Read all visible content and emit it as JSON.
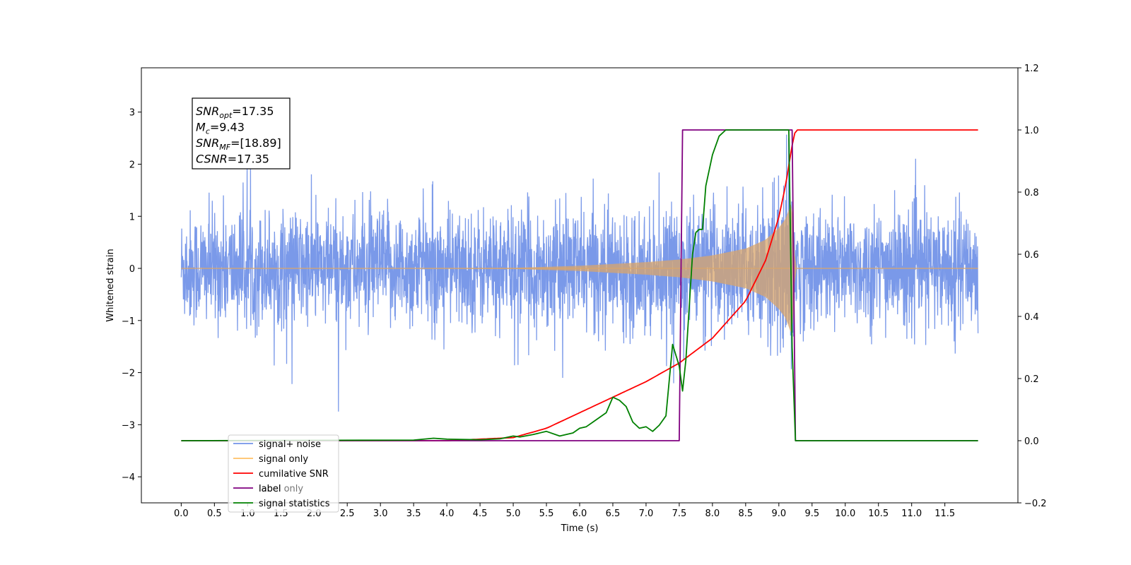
{
  "chart_data": {
    "type": "line",
    "xlabel": "Time (s)",
    "ylabel": "Whitened strain",
    "xlim": [
      -0.6,
      12.6
    ],
    "ylim": [
      -4.5,
      3.85
    ],
    "y2lim": [
      -0.2,
      1.2
    ],
    "x_ticks": [
      "0.0",
      "0.5",
      "1.0",
      "1.5",
      "2.0",
      "2.5",
      "3.0",
      "3.5",
      "4.0",
      "4.5",
      "5.0",
      "5.5",
      "6.0",
      "6.5",
      "7.0",
      "7.5",
      "8.0",
      "8.5",
      "9.0",
      "9.5",
      "10.0",
      "10.5",
      "11.0",
      "11.5"
    ],
    "y_ticks": [
      "3",
      "2",
      "1",
      "0",
      "−1",
      "−2",
      "−3",
      "−4"
    ],
    "y2_ticks": [
      "1.2",
      "1.0",
      "0.8",
      "0.6",
      "0.4",
      "0.2",
      "0.0",
      "−0.2"
    ],
    "annotation": {
      "lines": [
        {
          "base": "SNR",
          "sub": "opt",
          "rest": "=17.35"
        },
        {
          "base": "M",
          "sub": "c",
          "rest": "=9.43"
        },
        {
          "base": "SNR",
          "sub": "MF",
          "rest": "=[18.89]"
        },
        {
          "base": "CSNR",
          "sub": "",
          "rest": "=17.35"
        }
      ]
    },
    "series": [
      {
        "name": "signal+ noise",
        "color": "#7393e8",
        "axis": "left",
        "noise_std": 0.55,
        "x_range": [
          0.0,
          12.0
        ]
      },
      {
        "name": "signal only",
        "color": "#ffc066",
        "axis": "left",
        "envelope": {
          "x": [
            0,
            5.0,
            6.0,
            7.0,
            7.5,
            8.0,
            8.5,
            8.8,
            9.0,
            9.1,
            9.2,
            9.25
          ],
          "y": [
            0.0,
            0.01,
            0.05,
            0.12,
            0.17,
            0.25,
            0.38,
            0.55,
            0.78,
            0.95,
            1.3,
            0.0
          ]
        }
      },
      {
        "name": "cumilative SNR",
        "color": "#ff0000",
        "axis": "right",
        "x": [
          0.0,
          4.0,
          5.0,
          5.5,
          6.0,
          6.5,
          7.0,
          7.5,
          8.0,
          8.5,
          8.8,
          9.0,
          9.1,
          9.2,
          9.25,
          12.0
        ],
        "y": [
          0.0,
          0.0,
          0.01,
          0.04,
          0.09,
          0.14,
          0.19,
          0.25,
          0.33,
          0.45,
          0.58,
          0.72,
          0.82,
          0.95,
          1.0,
          1.0
        ]
      },
      {
        "name": "label",
        "color": "#800080",
        "axis": "right",
        "x": [
          0.0,
          7.5,
          7.55,
          9.2,
          9.25,
          12.0
        ],
        "y": [
          0.0,
          0.0,
          1.0,
          1.0,
          0.0,
          0.0
        ]
      },
      {
        "name": "signal statistics",
        "color": "#008000",
        "axis": "right",
        "x": [
          0.0,
          3.5,
          3.8,
          4.0,
          4.5,
          4.8,
          5.0,
          5.1,
          5.3,
          5.5,
          5.7,
          5.9,
          6.0,
          6.1,
          6.2,
          6.3,
          6.4,
          6.5,
          6.6,
          6.7,
          6.8,
          6.9,
          7.0,
          7.1,
          7.2,
          7.3,
          7.4,
          7.5,
          7.55,
          7.6,
          7.7,
          7.75,
          7.8,
          7.85,
          7.9,
          8.0,
          8.1,
          8.2,
          8.3,
          9.15,
          9.2,
          9.25,
          12.0
        ],
        "y": [
          0.0,
          0.002,
          0.008,
          0.005,
          0.003,
          0.006,
          0.015,
          0.012,
          0.02,
          0.03,
          0.015,
          0.025,
          0.04,
          0.045,
          0.06,
          0.075,
          0.09,
          0.14,
          0.13,
          0.11,
          0.06,
          0.04,
          0.045,
          0.03,
          0.05,
          0.08,
          0.31,
          0.24,
          0.16,
          0.26,
          0.6,
          0.67,
          0.68,
          0.68,
          0.82,
          0.92,
          0.98,
          1.0,
          1.0,
          1.0,
          0.3,
          0.0,
          0.0
        ]
      }
    ],
    "legend": {
      "position": "lower-left",
      "labels": [
        "signal+ noise",
        "signal only",
        "cumilative SNR",
        "label",
        "signal statistics"
      ],
      "overlap_text": "label only"
    }
  }
}
